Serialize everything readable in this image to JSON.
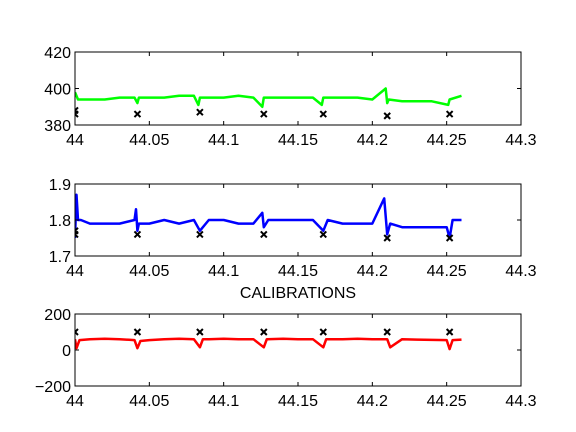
{
  "chart_data": [
    {
      "type": "line",
      "title": "",
      "xlabel": "",
      "ylabel": "",
      "xlim": [
        44,
        44.3
      ],
      "ylim": [
        380,
        420
      ],
      "xticks": [
        "44",
        "44.05",
        "44.1",
        "44.15",
        "44.2",
        "44.25",
        "44.3"
      ],
      "yticks": [
        "380",
        "400",
        "420"
      ],
      "grid": false,
      "series": [
        {
          "color": "#00ff00",
          "x": [
            44.0,
            44.002,
            44.01,
            44.02,
            44.03,
            44.04,
            44.042,
            44.043,
            44.05,
            44.06,
            44.07,
            44.08,
            44.083,
            44.084,
            44.09,
            44.1,
            44.11,
            44.12,
            44.126,
            44.127,
            44.13,
            44.14,
            44.15,
            44.16,
            44.166,
            44.167,
            44.17,
            44.18,
            44.19,
            44.2,
            44.209,
            44.21,
            44.211,
            44.22,
            44.23,
            44.24,
            44.251,
            44.252,
            44.26
          ],
          "y": [
            398,
            394,
            394,
            394,
            395,
            395,
            392,
            395,
            395,
            395,
            396,
            396,
            391,
            395,
            395,
            395,
            396,
            395,
            390,
            395,
            395,
            395,
            395,
            395,
            391,
            395,
            395,
            395,
            395,
            394,
            400,
            392,
            394,
            393,
            393,
            393,
            391,
            394,
            396
          ]
        },
        {
          "color": "#000000",
          "marker": "x",
          "line": false,
          "x": [
            44.0,
            44.0,
            44.042,
            44.084,
            44.127,
            44.167,
            44.21,
            44.252
          ],
          "y": [
            388,
            386,
            386,
            387,
            386,
            386,
            385,
            386
          ]
        }
      ]
    },
    {
      "type": "line",
      "title": "",
      "xlabel": "",
      "ylabel": "",
      "xlim": [
        44,
        44.3
      ],
      "ylim": [
        1.7,
        1.9
      ],
      "xticks": [
        "44",
        "44.05",
        "44.1",
        "44.15",
        "44.2",
        "44.25",
        "44.3"
      ],
      "yticks": [
        "1.7",
        "1.8",
        "1.9"
      ],
      "grid": false,
      "series": [
        {
          "color": "#0000ff",
          "x": [
            44.0,
            44.001,
            44.002,
            44.004,
            44.01,
            44.02,
            44.03,
            44.04,
            44.041,
            44.042,
            44.043,
            44.05,
            44.06,
            44.07,
            44.08,
            44.084,
            44.09,
            44.1,
            44.11,
            44.12,
            44.126,
            44.127,
            44.13,
            44.14,
            44.15,
            44.16,
            44.167,
            44.17,
            44.18,
            44.19,
            44.2,
            44.208,
            44.21,
            44.212,
            44.22,
            44.23,
            44.24,
            44.25,
            44.252,
            44.254,
            44.26
          ],
          "y": [
            1.75,
            1.87,
            1.8,
            1.8,
            1.79,
            1.79,
            1.79,
            1.8,
            1.83,
            1.77,
            1.79,
            1.79,
            1.8,
            1.79,
            1.8,
            1.77,
            1.8,
            1.8,
            1.79,
            1.79,
            1.82,
            1.78,
            1.8,
            1.8,
            1.8,
            1.8,
            1.77,
            1.8,
            1.79,
            1.79,
            1.79,
            1.86,
            1.76,
            1.79,
            1.78,
            1.78,
            1.78,
            1.78,
            1.75,
            1.8,
            1.8
          ]
        },
        {
          "color": "#000000",
          "marker": "x",
          "line": false,
          "x": [
            44.0,
            44.0,
            44.042,
            44.084,
            44.127,
            44.167,
            44.21,
            44.252
          ],
          "y": [
            1.77,
            1.76,
            1.76,
            1.76,
            1.76,
            1.76,
            1.75,
            1.75
          ]
        }
      ]
    },
    {
      "type": "line",
      "title": "CALIBRATIONS",
      "xlabel": "",
      "ylabel": "",
      "xlim": [
        44,
        44.3
      ],
      "ylim": [
        -200,
        200
      ],
      "xticks": [
        "44",
        "44.05",
        "44.1",
        "44.15",
        "44.2",
        "44.25",
        "44.3"
      ],
      "yticks": [
        "−200",
        "0",
        "200"
      ],
      "grid": false,
      "series": [
        {
          "color": "#ff0000",
          "x": [
            44.0,
            44.001,
            44.003,
            44.01,
            44.02,
            44.03,
            44.04,
            44.042,
            44.044,
            44.05,
            44.06,
            44.07,
            44.08,
            44.084,
            44.086,
            44.09,
            44.1,
            44.11,
            44.12,
            44.127,
            44.129,
            44.14,
            44.15,
            44.16,
            44.167,
            44.169,
            44.18,
            44.19,
            44.2,
            44.21,
            44.212,
            44.22,
            44.23,
            44.24,
            44.25,
            44.252,
            44.254,
            44.26
          ],
          "y": [
            60,
            10,
            55,
            60,
            62,
            60,
            55,
            10,
            50,
            55,
            60,
            62,
            60,
            15,
            60,
            60,
            62,
            60,
            60,
            15,
            60,
            62,
            60,
            60,
            15,
            60,
            60,
            62,
            60,
            60,
            15,
            60,
            58,
            56,
            55,
            5,
            55,
            58
          ]
        },
        {
          "color": "#000000",
          "marker": "x",
          "line": false,
          "x": [
            44.0,
            44.042,
            44.084,
            44.127,
            44.167,
            44.21,
            44.252
          ],
          "y": [
            100,
            100,
            100,
            100,
            100,
            100,
            100
          ]
        }
      ]
    }
  ]
}
